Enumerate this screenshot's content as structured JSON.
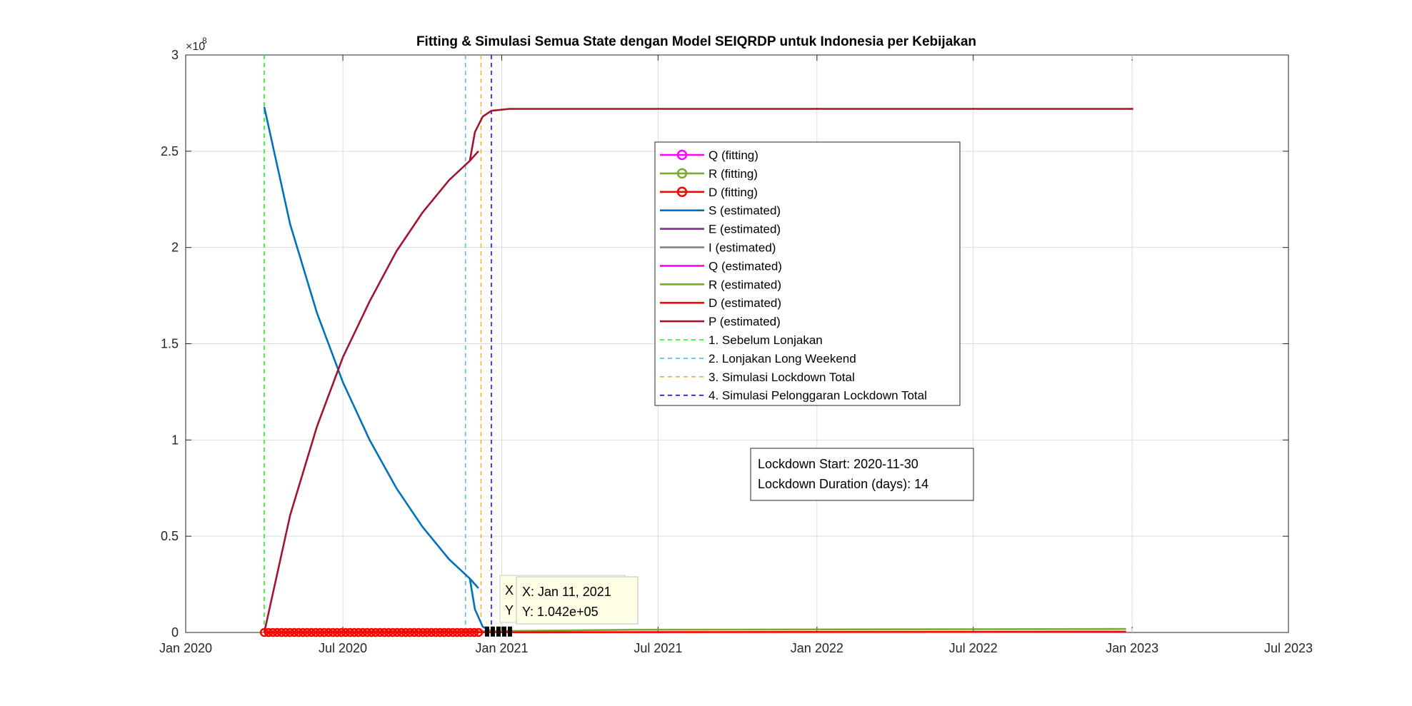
{
  "chart_data": {
    "type": "line",
    "title": "Fitting & Simulasi Semua State dengan Model SEIQRDP untuk Indonesia per Kebijakan",
    "xlabel": "",
    "ylabel": "",
    "y_exponent_label": "×10",
    "y_exponent": "8",
    "xlim": [
      "2020-01-01",
      "2023-07-01"
    ],
    "ylim": [
      0,
      3
    ],
    "y_scale_note": "values in units of 1e8",
    "grid": true,
    "x_ticks": [
      "Jan 2020",
      "Jul 2020",
      "Jan 2021",
      "Jul 2021",
      "Jan 2022",
      "Jul 2022",
      "Jan 2023",
      "Jul 2023"
    ],
    "x_tick_dates": [
      "2020-01-01",
      "2020-07-01",
      "2021-01-01",
      "2021-07-01",
      "2022-01-01",
      "2022-07-01",
      "2023-01-01",
      "2023-07-01"
    ],
    "y_ticks": [
      "0",
      "0.5",
      "1",
      "1.5",
      "2",
      "2.5",
      "3"
    ],
    "y_tick_values": [
      0,
      0.5,
      1,
      1.5,
      2,
      2.5,
      3
    ],
    "colors": {
      "S": "#0072BD",
      "P": "#A2142F",
      "Q": "#FF00FF",
      "R": "#77AC30",
      "D": "#FF0000",
      "E": "#7E2F8E",
      "I": "#808080",
      "policy1": "#00FF00",
      "policy2": "#4DBEEE",
      "policy3": "#EDB120",
      "policy4": "#0000FF"
    },
    "series": [
      {
        "name": "S (estimated)",
        "key": "S",
        "style": "solid",
        "segments": [
          [
            [
              "2020-04-01",
              2.73
            ],
            [
              "2020-05-01",
              2.12
            ],
            [
              "2020-06-01",
              1.66
            ],
            [
              "2020-07-01",
              1.3
            ],
            [
              "2020-08-01",
              1.0
            ],
            [
              "2020-09-01",
              0.75
            ],
            [
              "2020-10-01",
              0.55
            ],
            [
              "2020-11-01",
              0.38
            ],
            [
              "2020-11-25",
              0.28
            ],
            [
              "2020-12-05",
              0.23
            ]
          ],
          [
            [
              "2020-11-25",
              0.28
            ],
            [
              "2020-12-01",
              0.12
            ],
            [
              "2020-12-10",
              0.03
            ],
            [
              "2020-12-20",
              0.005
            ],
            [
              "2021-01-05",
              0.001
            ]
          ]
        ]
      },
      {
        "name": "P (estimated)",
        "key": "P",
        "style": "solid",
        "segments": [
          [
            [
              "2020-04-01",
              0.0
            ],
            [
              "2020-05-01",
              0.61
            ],
            [
              "2020-06-01",
              1.07
            ],
            [
              "2020-07-01",
              1.43
            ],
            [
              "2020-08-01",
              1.72
            ],
            [
              "2020-09-01",
              1.98
            ],
            [
              "2020-10-01",
              2.18
            ],
            [
              "2020-11-01",
              2.35
            ],
            [
              "2020-11-25",
              2.45
            ],
            [
              "2020-12-05",
              2.5
            ]
          ],
          [
            [
              "2020-11-25",
              2.45
            ],
            [
              "2020-12-01",
              2.6
            ],
            [
              "2020-12-10",
              2.68
            ],
            [
              "2020-12-20",
              2.71
            ],
            [
              "2021-01-10",
              2.72
            ],
            [
              "2022-12-25",
              2.72
            ]
          ]
        ]
      },
      {
        "name": "P (estimated)",
        "key": "P",
        "style": "dashed",
        "segments": [
          [
            [
              "2022-12-25",
              2.72
            ],
            [
              "2023-01-05",
              2.72
            ]
          ]
        ]
      },
      {
        "name": "R (estimated)",
        "key": "R",
        "style": "solid",
        "segments": [
          [
            [
              "2020-04-01",
              0.0
            ],
            [
              "2020-12-01",
              0.006
            ],
            [
              "2021-06-01",
              0.014
            ],
            [
              "2022-12-25",
              0.018
            ]
          ]
        ]
      },
      {
        "name": "D (estimated)",
        "key": "D",
        "style": "solid",
        "segments": [
          [
            [
              "2020-04-01",
              0.0
            ],
            [
              "2022-12-25",
              0.004
            ]
          ]
        ]
      }
    ],
    "fitting_markers": {
      "name": "D (fitting)",
      "from": "2020-04-01",
      "to": "2020-12-10",
      "y": 0.0
    },
    "datatip_markers": {
      "from": "2020-12-15",
      "to": "2021-01-11",
      "y": 0.001
    },
    "policy_lines": [
      {
        "name": "1. Sebelum Lonjakan",
        "key": "policy1",
        "date": "2020-04-01"
      },
      {
        "name": "2. Lonjakan Long Weekend",
        "key": "policy2",
        "date": "2020-11-20"
      },
      {
        "name": "3. Simulasi Lockdown Total",
        "key": "policy3",
        "date": "2020-12-08"
      },
      {
        "name": "4. Simulasi Pelonggaran Lockdown Total",
        "key": "policy4",
        "date": "2020-12-20"
      }
    ],
    "end_line_date": "2023-01-01",
    "legend_position": "upper-center",
    "legend": [
      {
        "label": "Q (fitting)",
        "key": "Q",
        "kind": "marker"
      },
      {
        "label": "R (fitting)",
        "key": "R",
        "kind": "marker"
      },
      {
        "label": "D (fitting)",
        "key": "D",
        "kind": "marker"
      },
      {
        "label": "S (estimated)",
        "key": "S",
        "kind": "solid"
      },
      {
        "label": "E (estimated)",
        "key": "E",
        "kind": "solid"
      },
      {
        "label": "I (estimated)",
        "key": "I",
        "kind": "solid"
      },
      {
        "label": "Q (estimated)",
        "key": "Q",
        "kind": "solid"
      },
      {
        "label": "R (estimated)",
        "key": "R",
        "kind": "solid"
      },
      {
        "label": "D (estimated)",
        "key": "D",
        "kind": "solid"
      },
      {
        "label": "P (estimated)",
        "key": "P",
        "kind": "solid"
      },
      {
        "label": "1. Sebelum Lonjakan",
        "key": "policy1",
        "kind": "dashed"
      },
      {
        "label": "2. Lonjakan Long Weekend",
        "key": "policy2",
        "kind": "dashed"
      },
      {
        "label": "3. Simulasi Lockdown Total",
        "key": "policy3",
        "kind": "dashed"
      },
      {
        "label": "4. Simulasi Pelonggaran Lockdown Total",
        "key": "policy4",
        "kind": "dashed"
      }
    ],
    "annotation": {
      "line1": "Lockdown Start: 2020-11-30",
      "line2": "Lockdown Duration (days): 14"
    },
    "datatip_back": {
      "x_label": "X",
      "y_label": "Y"
    },
    "datatip": {
      "x_text": "X: Jan 11, 2021",
      "y_text": "Y: 1.042e+05",
      "date": "2021-01-11",
      "value": 0.001042
    }
  }
}
